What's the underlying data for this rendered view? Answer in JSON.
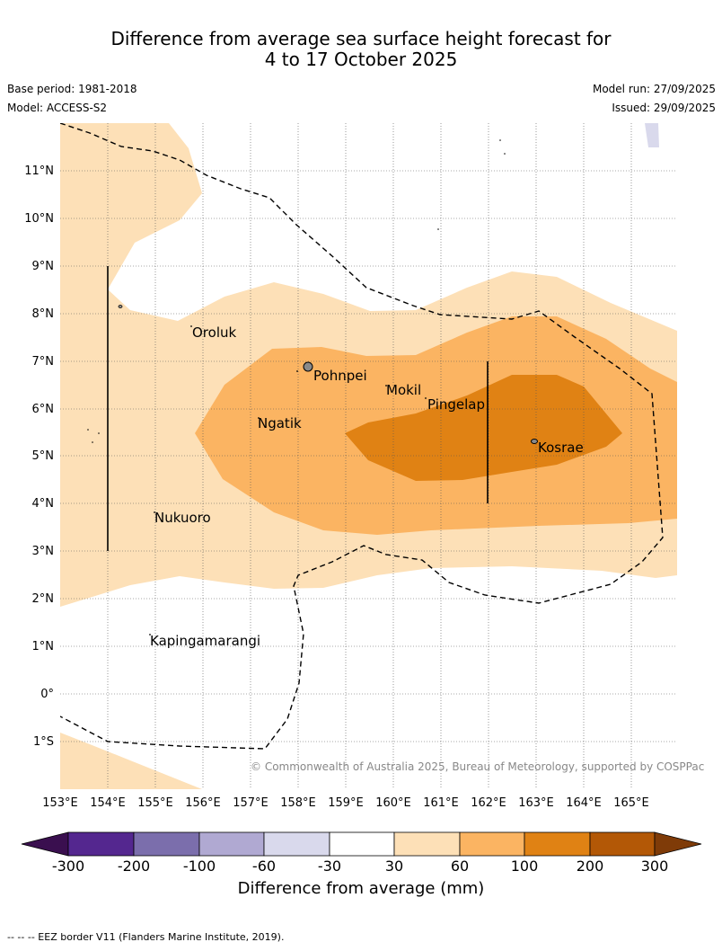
{
  "title": {
    "line1": "Difference from average sea surface height forecast for",
    "line2": "4 to 17 October 2025"
  },
  "meta": {
    "base_period": "Base period: 1981-2018",
    "model": "Model: ACCESS-S2",
    "model_run": "Model run: 27/09/2025",
    "issued": "Issued: 29/09/2025"
  },
  "axes": {
    "lat_labels": [
      "11°N",
      "10°N",
      "9°N",
      "8°N",
      "7°N",
      "6°N",
      "5°N",
      "4°N",
      "3°N",
      "2°N",
      "1°N",
      "0°",
      "1°S"
    ],
    "lon_labels": [
      "153°E",
      "154°E",
      "155°E",
      "156°E",
      "157°E",
      "158°E",
      "159°E",
      "160°E",
      "161°E",
      "162°E",
      "163°E",
      "164°E",
      "165°E"
    ]
  },
  "places": {
    "oroluk": "Oroluk",
    "pohnpei": "Pohnpei",
    "mokil": "Mokil",
    "pingelap": "Pingelap",
    "ngatik": "Ngatik",
    "kosrae": "Kosrae",
    "nukuoro": "Nukuoro",
    "kapingamarangi": "Kapingamarangi"
  },
  "copyright": "© Commonwealth of Australia 2025, Bureau of Meteorology, supported by COSPPac",
  "colorbar": {
    "title": "Difference from average (mm)",
    "ticks": [
      "-300",
      "-200",
      "-100",
      "-60",
      "-30",
      "30",
      "60",
      "100",
      "200",
      "300"
    ],
    "colors": {
      "under": "#3a0f4f",
      "c1": "#54278f",
      "c2": "#7b6eac",
      "c3": "#b0a9d2",
      "c4": "#d9d9ec",
      "c5": "#ffffff",
      "c6": "#fde0b7",
      "c7": "#fbb462",
      "c8": "#e08214",
      "c9": "#b35806",
      "over": "#7f3b08"
    }
  },
  "footnote": "--  --  -- EEZ border V11 (Flanders Marine Institute, 2019)."
}
